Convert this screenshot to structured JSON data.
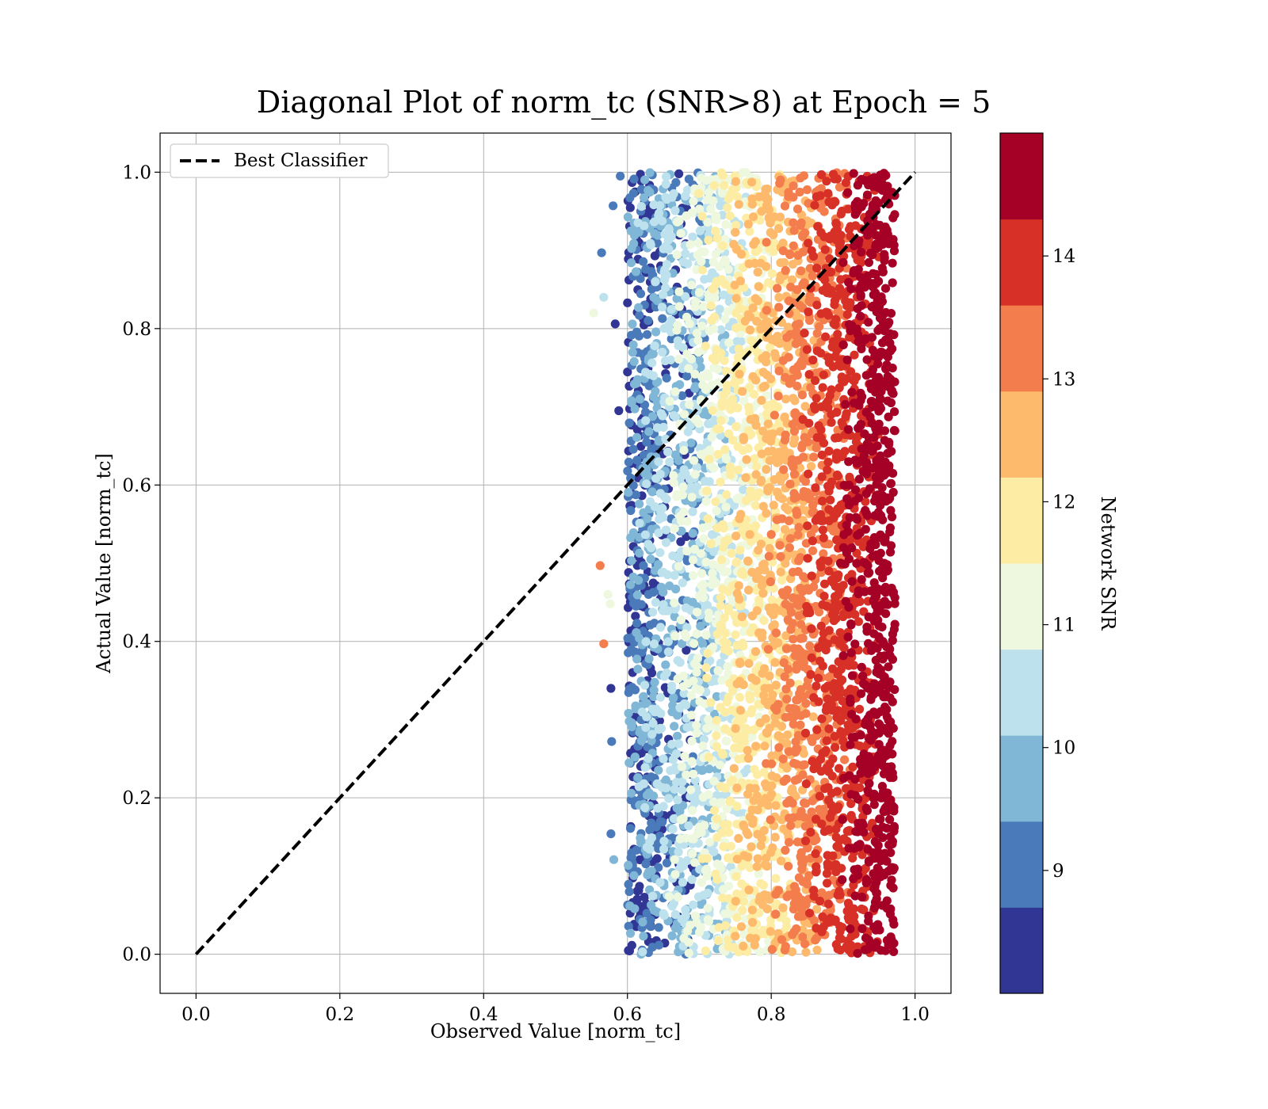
{
  "chart_data": {
    "type": "scatter",
    "title": "Diagonal Plot of norm_tc (SNR>8) at Epoch = 5",
    "xlabel": "Observed Value [norm_tc]",
    "ylabel": "Actual Value [norm_tc]",
    "xlim": [
      -0.05,
      1.05
    ],
    "ylim": [
      -0.05,
      1.05
    ],
    "xticks": [
      "0.0",
      "0.2",
      "0.4",
      "0.6",
      "0.8",
      "1.0"
    ],
    "yticks": [
      "0.0",
      "0.2",
      "0.4",
      "0.6",
      "0.8",
      "1.0"
    ],
    "grid": true,
    "legend": {
      "placement": "top-left",
      "entries": [
        {
          "label": "Best Classifier",
          "style": "black dashed line"
        }
      ]
    },
    "reference_line": {
      "label": "Best Classifier",
      "x": [
        0.0,
        1.0
      ],
      "y": [
        0.0,
        1.0
      ],
      "color": "#000000",
      "style": "dashed"
    },
    "colorbar": {
      "label": "Network SNR",
      "range": [
        8,
        15
      ],
      "ticks": [
        "9",
        "10",
        "11",
        "12",
        "13",
        "14"
      ],
      "colors": [
        "#313695",
        "#4a7ab9",
        "#80b6d6",
        "#bde2ed",
        "#eef8df",
        "#fdeda4",
        "#fdba6c",
        "#f47d4d",
        "#d73127",
        "#a50026"
      ]
    },
    "scatter_summary": {
      "x_range": [
        0.55,
        0.98
      ],
      "y_range": [
        0.0,
        1.0
      ],
      "trend": "Observed value increases with SNR: low-SNR (blue) points near x=0.6–0.75, high-SNR (dark red) points concentrated near x=0.9–0.97, independent of actual value"
    }
  }
}
